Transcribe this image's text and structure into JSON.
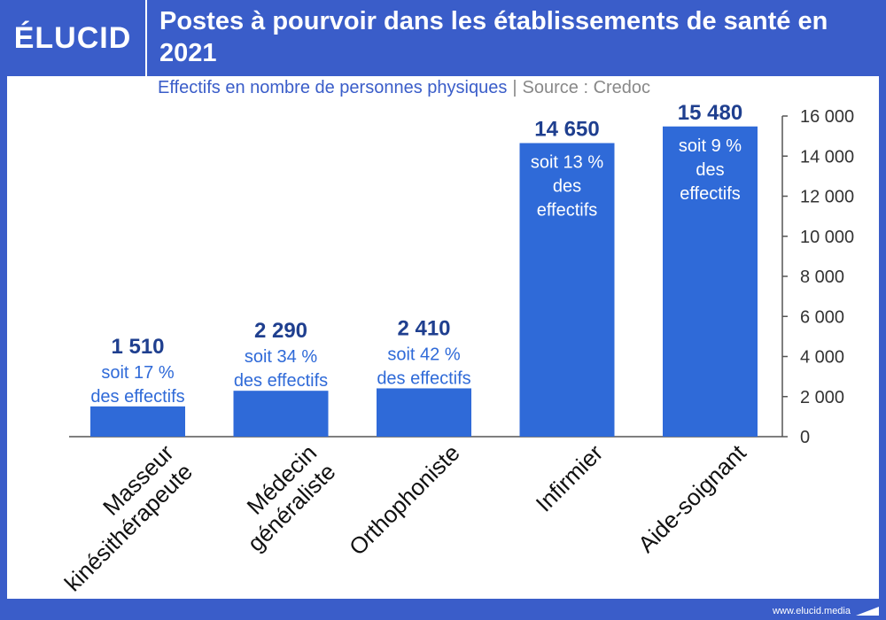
{
  "header": {
    "logo_text": "ÉLUCID",
    "title": "Postes à pourvoir dans les établissements de santé en 2021"
  },
  "subtitle": {
    "description": "Effectifs en nombre de personnes physiques",
    "separator": "|",
    "source": "Source : Credoc"
  },
  "footer": {
    "url": "www.elucid.media"
  },
  "colors": {
    "bar": "#2f6ad8",
    "background": "#3a5dc9",
    "value_label": "#1f3f8f",
    "annotation": "#2f6ad8"
  },
  "chart_data": {
    "type": "bar",
    "title": "Postes à pourvoir dans les établissements de santé en 2021",
    "categories": [
      "Masseur kinésithérapeute",
      "Médecin généraliste",
      "Orthophoniste",
      "Infirmier",
      "Aide-soignant"
    ],
    "category_lines": [
      [
        "Masseur",
        "kinésithérapeute"
      ],
      [
        "Médecin",
        "généraliste"
      ],
      [
        "Orthophoniste"
      ],
      [
        "Infirmier"
      ],
      [
        "Aide-soignant"
      ]
    ],
    "values": [
      1510,
      2290,
      2410,
      14650,
      15480
    ],
    "value_labels": [
      "1 510",
      "2 290",
      "2 410",
      "14 650",
      "15 480"
    ],
    "annotations": [
      [
        "soit 17 %",
        "des effectifs"
      ],
      [
        "soit 34 %",
        "des effectifs"
      ],
      [
        "soit 42 %",
        "des effectifs"
      ],
      [
        "soit 13 %",
        "des",
        "effectifs"
      ],
      [
        "soit 9 %",
        "des",
        "effectifs"
      ]
    ],
    "y_ticks": [
      0,
      2000,
      4000,
      6000,
      8000,
      10000,
      12000,
      14000,
      16000
    ],
    "y_tick_labels": [
      "0",
      "2 000",
      "4 000",
      "6 000",
      "8 000",
      "10 000",
      "12 000",
      "14 000",
      "16 000"
    ],
    "ylim": [
      0,
      16000
    ],
    "y_axis_position": "right",
    "grid": false,
    "legend": "none"
  }
}
